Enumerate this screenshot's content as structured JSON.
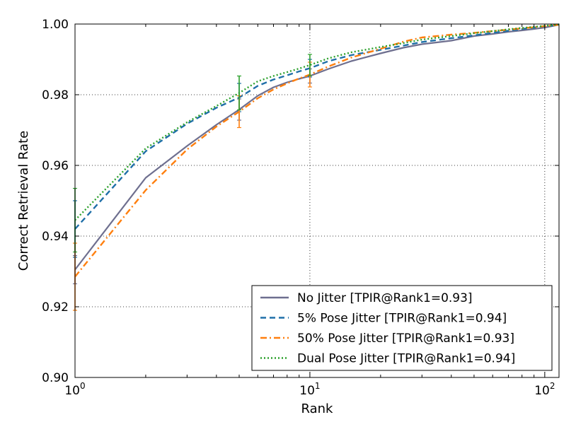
{
  "chart_data": {
    "type": "line",
    "title": "",
    "xlabel": "Rank",
    "ylabel": "Correct Retrieval Rate",
    "xscale": "log",
    "xlim": [
      1,
      115
    ],
    "ylim": [
      0.9,
      1.0
    ],
    "grid": true,
    "legend_position": "lower-right",
    "x_ticks": [
      {
        "value": 1,
        "base": "10",
        "exp": "0"
      },
      {
        "value": 10,
        "base": "10",
        "exp": "1"
      },
      {
        "value": 100,
        "base": "10",
        "exp": "2"
      }
    ],
    "y_ticks": [
      {
        "value": 0.9,
        "label": "0.90"
      },
      {
        "value": 0.92,
        "label": "0.92"
      },
      {
        "value": 0.94,
        "label": "0.94"
      },
      {
        "value": 0.96,
        "label": "0.96"
      },
      {
        "value": 0.98,
        "label": "0.98"
      },
      {
        "value": 1.0,
        "label": "1.00"
      }
    ],
    "x": [
      1,
      2,
      3,
      4,
      5,
      6,
      7,
      8,
      9,
      10,
      12,
      15,
      20,
      25,
      30,
      40,
      50,
      60,
      70,
      80,
      90,
      100,
      115
    ],
    "series": [
      {
        "name": "No Jitter [TPIR@Rank1=0.93]",
        "color": "#6e6f8f",
        "dash": "solid",
        "values": [
          0.9305,
          0.9565,
          0.9655,
          0.9715,
          0.9758,
          0.9797,
          0.9821,
          0.9835,
          0.9845,
          0.9853,
          0.9873,
          0.9895,
          0.9917,
          0.9933,
          0.9943,
          0.9953,
          0.9966,
          0.9972,
          0.9978,
          0.9982,
          0.9986,
          0.999,
          0.9998
        ],
        "errorbars": [
          {
            "x": 1,
            "y": 0.9305,
            "err": 0.004
          },
          {
            "x": 5,
            "y": 0.9758,
            "err": 0.003
          },
          {
            "x": 10,
            "y": 0.9853,
            "err": 0.002
          }
        ]
      },
      {
        "name": "5% Pose Jitter [TPIR@Rank1=0.94]",
        "color": "#1f6fa8",
        "dash": "8,5",
        "values": [
          0.942,
          0.964,
          0.9718,
          0.9763,
          0.9792,
          0.9825,
          0.9843,
          0.9855,
          0.9866,
          0.9875,
          0.9895,
          0.9912,
          0.9927,
          0.9939,
          0.9949,
          0.996,
          0.9968,
          0.9975,
          0.9981,
          0.9986,
          0.999,
          0.9993,
          0.9998
        ],
        "errorbars": [
          {
            "x": 1,
            "y": 0.942,
            "err": 0.008
          },
          {
            "x": 5,
            "y": 0.9792,
            "err": 0.004
          },
          {
            "x": 10,
            "y": 0.9875,
            "err": 0.0025
          }
        ]
      },
      {
        "name": "50% Pose Jitter [TPIR@Rank1=0.93]",
        "color": "#ff7f0e",
        "dash": "9,4,2,4",
        "values": [
          0.9285,
          0.953,
          0.9645,
          0.971,
          0.9752,
          0.979,
          0.9815,
          0.9832,
          0.9846,
          0.9857,
          0.988,
          0.9905,
          0.993,
          0.995,
          0.9962,
          0.997,
          0.9975,
          0.998,
          0.9984,
          0.9988,
          0.9991,
          0.9994,
          0.9998
        ],
        "errorbars": [
          {
            "x": 1,
            "y": 0.9285,
            "err": 0.0095
          },
          {
            "x": 5,
            "y": 0.9752,
            "err": 0.0045
          },
          {
            "x": 10,
            "y": 0.9857,
            "err": 0.0035
          }
        ]
      },
      {
        "name": "Dual Pose Jitter [TPIR@Rank1=0.94]",
        "color": "#2ca02c",
        "dash": "2,3",
        "values": [
          0.9445,
          0.9648,
          0.9722,
          0.9768,
          0.9805,
          0.9838,
          0.9853,
          0.9864,
          0.9874,
          0.9884,
          0.9903,
          0.992,
          0.9935,
          0.9946,
          0.9956,
          0.9966,
          0.9974,
          0.998,
          0.9985,
          0.9989,
          0.9992,
          0.9995,
          0.9999
        ],
        "errorbars": [
          {
            "x": 1,
            "y": 0.9445,
            "err": 0.009
          },
          {
            "x": 5,
            "y": 0.9805,
            "err": 0.0048
          },
          {
            "x": 10,
            "y": 0.9884,
            "err": 0.003
          }
        ]
      }
    ]
  }
}
